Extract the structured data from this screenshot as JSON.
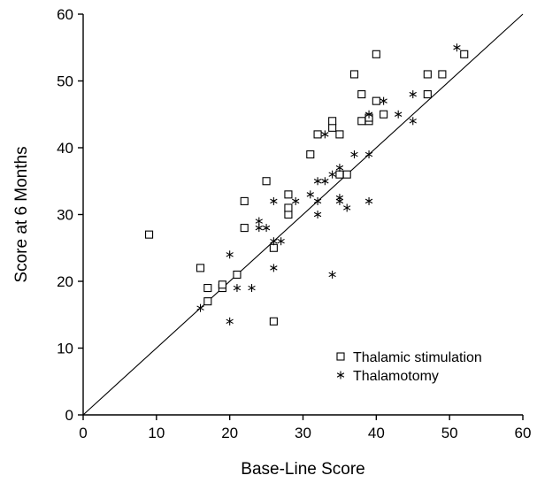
{
  "chart_data": {
    "type": "scatter",
    "xlabel": "Base-Line Score",
    "ylabel": "Score at 6 Months",
    "xlim": [
      0,
      60
    ],
    "ylim": [
      0,
      60
    ],
    "xticks": [
      "0",
      "10",
      "20",
      "30",
      "40",
      "50",
      "60"
    ],
    "yticks": [
      "0",
      "10",
      "20",
      "30",
      "40",
      "50",
      "60"
    ],
    "grid": false,
    "legend_position": "bottom-right",
    "reference_line": {
      "from": [
        0,
        0
      ],
      "to": [
        60,
        60
      ],
      "label": ""
    },
    "series": [
      {
        "name": "Thalamic stimulation",
        "marker": "square",
        "points": [
          [
            9,
            27
          ],
          [
            16,
            22
          ],
          [
            17,
            19
          ],
          [
            17,
            17
          ],
          [
            19,
            19
          ],
          [
            19,
            19.5
          ],
          [
            21,
            21
          ],
          [
            22,
            28
          ],
          [
            22,
            32
          ],
          [
            25,
            35
          ],
          [
            26,
            25
          ],
          [
            26,
            14
          ],
          [
            28,
            30
          ],
          [
            28,
            31
          ],
          [
            28,
            33
          ],
          [
            31,
            39
          ],
          [
            32,
            42
          ],
          [
            34,
            43
          ],
          [
            34,
            44
          ],
          [
            35,
            42
          ],
          [
            35,
            36
          ],
          [
            36,
            36
          ],
          [
            37,
            51
          ],
          [
            38,
            48
          ],
          [
            38,
            44
          ],
          [
            39,
            44
          ],
          [
            39,
            44.5
          ],
          [
            40,
            54
          ],
          [
            40,
            47
          ],
          [
            41,
            45
          ],
          [
            47,
            48
          ],
          [
            47,
            51
          ],
          [
            49,
            51
          ],
          [
            52,
            54
          ]
        ]
      },
      {
        "name": "Thalamotomy",
        "marker": "asterisk",
        "points": [
          [
            16,
            16
          ],
          [
            20,
            14
          ],
          [
            20,
            24
          ],
          [
            21,
            19
          ],
          [
            23,
            19
          ],
          [
            24,
            28
          ],
          [
            24,
            29
          ],
          [
            25,
            28
          ],
          [
            26,
            22
          ],
          [
            26,
            26
          ],
          [
            26,
            32
          ],
          [
            27,
            26
          ],
          [
            29,
            32
          ],
          [
            31,
            33
          ],
          [
            32,
            30
          ],
          [
            32,
            32
          ],
          [
            32,
            35
          ],
          [
            33,
            35
          ],
          [
            33,
            42
          ],
          [
            34,
            21
          ],
          [
            34,
            36
          ],
          [
            35,
            32
          ],
          [
            35,
            32.5
          ],
          [
            35,
            37
          ],
          [
            36,
            31
          ],
          [
            37,
            39
          ],
          [
            39,
            32
          ],
          [
            39,
            39
          ],
          [
            39,
            45
          ],
          [
            41,
            47
          ],
          [
            43,
            45
          ],
          [
            45,
            44
          ],
          [
            45,
            48
          ],
          [
            51,
            55
          ]
        ]
      }
    ]
  }
}
